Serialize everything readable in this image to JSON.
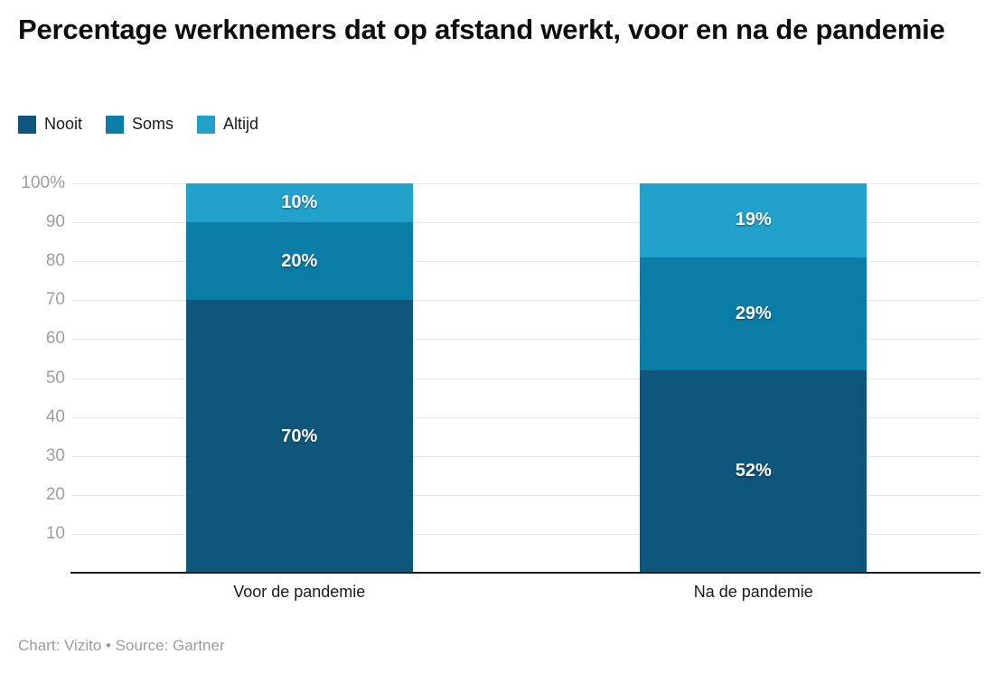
{
  "title": "Percentage werknemers dat op afstand werkt, voor en na de pandemie",
  "attribution": "Chart: Vizito • Source: Gartner",
  "chart_data": {
    "type": "bar",
    "stacked": true,
    "title": "Percentage werknemers dat op afstand werkt, voor en na de pandemie",
    "categories": [
      "Voor de pandemie",
      "Na de pandemie"
    ],
    "series": [
      {
        "name": "Nooit",
        "color": "#0e567c",
        "values": [
          70,
          52
        ]
      },
      {
        "name": "Soms",
        "color": "#0b7ca5",
        "values": [
          20,
          29
        ]
      },
      {
        "name": "Altijd",
        "color": "#22a2cb",
        "values": [
          10,
          19
        ]
      }
    ],
    "value_suffix": "%",
    "ylim": [
      0,
      100
    ],
    "ytick_labels": [
      "100%",
      "90",
      "80",
      "70",
      "60",
      "50",
      "40",
      "30",
      "20",
      "10"
    ],
    "grid": true,
    "legend_position": "top-left",
    "xlabel": "",
    "ylabel": ""
  }
}
